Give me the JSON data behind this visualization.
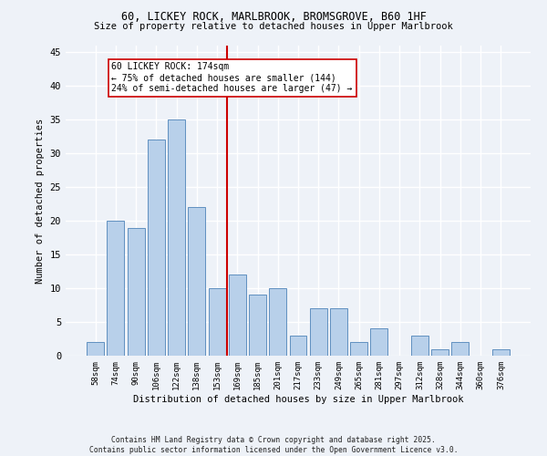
{
  "title1": "60, LICKEY ROCK, MARLBROOK, BROMSGROVE, B60 1HF",
  "title2": "Size of property relative to detached houses in Upper Marlbrook",
  "xlabel": "Distribution of detached houses by size in Upper Marlbrook",
  "ylabel": "Number of detached properties",
  "bar_labels": [
    "58sqm",
    "74sqm",
    "90sqm",
    "106sqm",
    "122sqm",
    "138sqm",
    "153sqm",
    "169sqm",
    "185sqm",
    "201sqm",
    "217sqm",
    "233sqm",
    "249sqm",
    "265sqm",
    "281sqm",
    "297sqm",
    "312sqm",
    "328sqm",
    "344sqm",
    "360sqm",
    "376sqm"
  ],
  "bar_values": [
    2,
    20,
    19,
    32,
    35,
    22,
    10,
    12,
    9,
    10,
    3,
    7,
    7,
    2,
    4,
    0,
    3,
    1,
    2,
    0,
    1
  ],
  "bar_color": "#b8d0ea",
  "bar_edge_color": "#6090c0",
  "vline_color": "#cc0000",
  "annotation_box_color": "#ffffff",
  "annotation_box_edge": "#cc0000",
  "marker_label": "60 LICKEY ROCK: 174sqm",
  "annotation_line1": "← 75% of detached houses are smaller (144)",
  "annotation_line2": "24% of semi-detached houses are larger (47) →",
  "ylim": [
    0,
    46
  ],
  "yticks": [
    0,
    5,
    10,
    15,
    20,
    25,
    30,
    35,
    40,
    45
  ],
  "footer1": "Contains HM Land Registry data © Crown copyright and database right 2025.",
  "footer2": "Contains public sector information licensed under the Open Government Licence v3.0.",
  "bg_color": "#eef2f8",
  "grid_color": "#ffffff"
}
